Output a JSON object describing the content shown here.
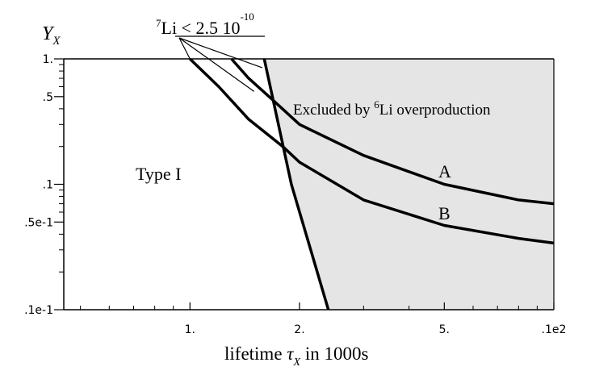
{
  "chart_data": {
    "type": "line",
    "x_scale": "log",
    "y_scale": "log",
    "xlim": [
      0.45,
      10
    ],
    "ylim": [
      0.01,
      1
    ],
    "grid": false,
    "xlabel_prefix": "lifetime ",
    "xlabel_tau": "τ",
    "xlabel_sub": "X",
    "xlabel_suffix": " in 1000s",
    "ylabel_main": "Y",
    "ylabel_sub": "X",
    "x_ticks": [
      {
        "value": 1,
        "label": "1."
      },
      {
        "value": 2,
        "label": "2."
      },
      {
        "value": 5,
        "label": "5."
      },
      {
        "value": 10,
        "label": ".1e2"
      }
    ],
    "x_minor_ticks": [
      0.5,
      0.6,
      0.7,
      0.8,
      0.9,
      3,
      4,
      6,
      7,
      8,
      9
    ],
    "y_ticks": [
      {
        "value": 1,
        "label": "1."
      },
      {
        "value": 0.5,
        "label": ".5"
      },
      {
        "value": 0.1,
        "label": ".1"
      },
      {
        "value": 0.05,
        "label": ".5e-1"
      },
      {
        "value": 0.01,
        "label": ".1e-1"
      }
    ],
    "y_minor_ticks": [
      0.9,
      0.8,
      0.7,
      0.6,
      0.4,
      0.3,
      0.2,
      0.09,
      0.08,
      0.07,
      0.06,
      0.04,
      0.03,
      0.02
    ],
    "excluded_region": {
      "label_prefix": "Excluded by ",
      "label_sup": "6",
      "label_suffix": "Li overproduction",
      "fill": "#e5e5e5",
      "boundary": [
        {
          "x": 1.6,
          "y": 1.0
        },
        {
          "x": 1.9,
          "y": 0.1
        },
        {
          "x": 2.4,
          "y": 0.01
        }
      ]
    },
    "region_label": "Type I",
    "series": [
      {
        "name": "A",
        "values": [
          {
            "x": 1.3,
            "y": 1.0
          },
          {
            "x": 1.45,
            "y": 0.7
          },
          {
            "x": 1.65,
            "y": 0.5
          },
          {
            "x": 2.0,
            "y": 0.3
          },
          {
            "x": 3.0,
            "y": 0.17
          },
          {
            "x": 5.0,
            "y": 0.1
          },
          {
            "x": 8.0,
            "y": 0.075
          },
          {
            "x": 10.0,
            "y": 0.07
          }
        ]
      },
      {
        "name": "B",
        "values": [
          {
            "x": 1.0,
            "y": 1.0
          },
          {
            "x": 1.2,
            "y": 0.6
          },
          {
            "x": 1.45,
            "y": 0.33
          },
          {
            "x": 1.8,
            "y": 0.2
          },
          {
            "x": 2.0,
            "y": 0.15
          },
          {
            "x": 3.0,
            "y": 0.075
          },
          {
            "x": 5.0,
            "y": 0.047
          },
          {
            "x": 8.0,
            "y": 0.037
          },
          {
            "x": 10.0,
            "y": 0.034
          }
        ]
      }
    ],
    "annotation": {
      "sup": "7",
      "text": "Li < 2.5 10",
      "exp": "-10",
      "targets": [
        {
          "x": 1.0,
          "y": 1.0
        },
        {
          "x": 1.58,
          "y": 0.85
        },
        {
          "x": 1.5,
          "y": 0.55
        }
      ]
    }
  }
}
